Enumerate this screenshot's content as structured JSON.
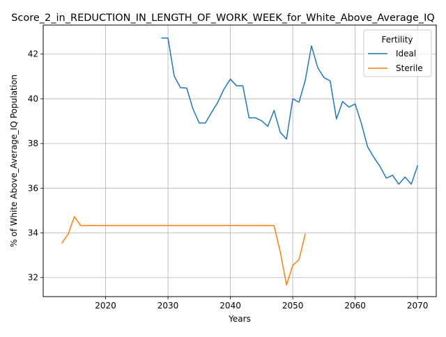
{
  "chart_data": {
    "type": "line",
    "title": "Score_2_in_REDUCTION_IN_LENGTH_OF_WORK_WEEK_for_White_Above_Average_IQ",
    "xlabel": "Years",
    "ylabel": "% of White Above_Average_IQ Population",
    "xlim": [
      2010,
      2073
    ],
    "ylim": [
      31.15,
      43.3
    ],
    "xticks": [
      2020,
      2030,
      2040,
      2050,
      2060,
      2070
    ],
    "yticks": [
      32,
      34,
      36,
      38,
      40,
      42
    ],
    "grid": true,
    "legend": {
      "title": "Fertility",
      "placement": "top-right"
    },
    "series": [
      {
        "name": "Ideal",
        "color": "#1f77b4",
        "x": [
          2029,
          2030,
          2031,
          2032,
          2033,
          2034,
          2035,
          2036,
          2037,
          2038,
          2039,
          2040,
          2041,
          2042,
          2043,
          2044,
          2045,
          2046,
          2047,
          2048,
          2049,
          2050,
          2051,
          2052,
          2053,
          2054,
          2055,
          2056,
          2057,
          2058,
          2059,
          2060,
          2061,
          2062,
          2063,
          2064,
          2065,
          2066,
          2067,
          2068,
          2069,
          2070
        ],
        "y": [
          42.72,
          42.72,
          41.02,
          40.5,
          40.48,
          39.55,
          38.92,
          38.92,
          39.4,
          39.85,
          40.45,
          40.88,
          40.58,
          40.58,
          39.15,
          39.15,
          39.02,
          38.77,
          39.48,
          38.5,
          38.2,
          40.0,
          39.85,
          40.82,
          42.37,
          41.4,
          40.95,
          40.8,
          39.1,
          39.88,
          39.63,
          39.77,
          38.9,
          37.85,
          37.38,
          36.97,
          36.45,
          36.58,
          36.18,
          36.5,
          36.18,
          37.0
        ]
      },
      {
        "name": "Sterile",
        "color": "#ff7f0e",
        "x": [
          2013,
          2014,
          2015,
          2016,
          2017,
          2018,
          2019,
          2020,
          2021,
          2022,
          2023,
          2024,
          2025,
          2026,
          2027,
          2028,
          2029,
          2030,
          2031,
          2032,
          2033,
          2034,
          2035,
          2036,
          2037,
          2038,
          2039,
          2040,
          2041,
          2042,
          2043,
          2044,
          2045,
          2046,
          2047,
          2048,
          2049,
          2050,
          2051,
          2052
        ],
        "y": [
          33.55,
          33.95,
          34.73,
          34.33,
          34.33,
          34.33,
          34.33,
          34.33,
          34.33,
          34.33,
          34.33,
          34.33,
          34.33,
          34.33,
          34.33,
          34.33,
          34.33,
          34.33,
          34.33,
          34.33,
          34.33,
          34.33,
          34.33,
          34.33,
          34.33,
          34.33,
          34.33,
          34.33,
          34.33,
          34.33,
          34.33,
          34.33,
          34.33,
          34.33,
          34.33,
          33.15,
          31.67,
          32.55,
          32.8,
          33.95
        ]
      }
    ]
  }
}
